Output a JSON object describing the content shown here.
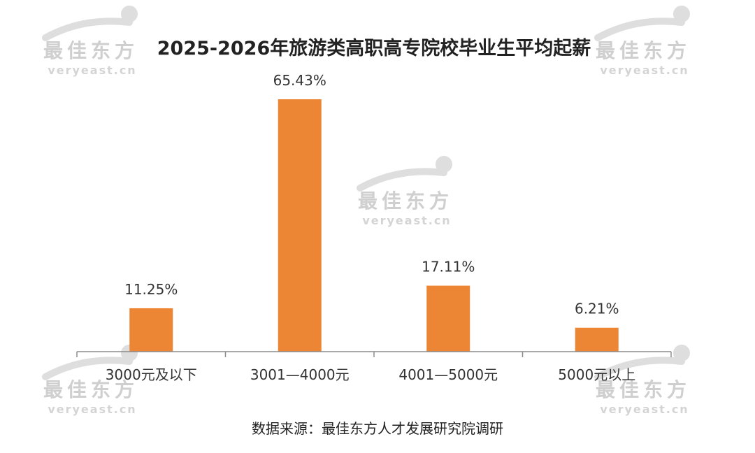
{
  "watermark": {
    "logo_text": "最佳东方",
    "url_text": "veryeast.cn"
  },
  "source_note": "数据来源：最佳东方人才发展研究院调研",
  "colors": {
    "bar": "#ED8634",
    "axis": "#8C8C8C",
    "text": "#333333"
  },
  "chart_data": {
    "type": "bar",
    "title": "2025-2026年旅游类高职高专院校毕业生平均起薪",
    "xlabel": "",
    "ylabel": "",
    "categories": [
      "3000元及以下",
      "3001—4000元",
      "4001—5000元",
      "5000元以上"
    ],
    "values": [
      11.25,
      65.43,
      17.11,
      6.21
    ],
    "data_labels": [
      "11.25%",
      "65.43%",
      "17.11%",
      "6.21%"
    ],
    "ylim": [
      0,
      65.43
    ],
    "unit": "%",
    "grid": false,
    "legend": "none"
  }
}
